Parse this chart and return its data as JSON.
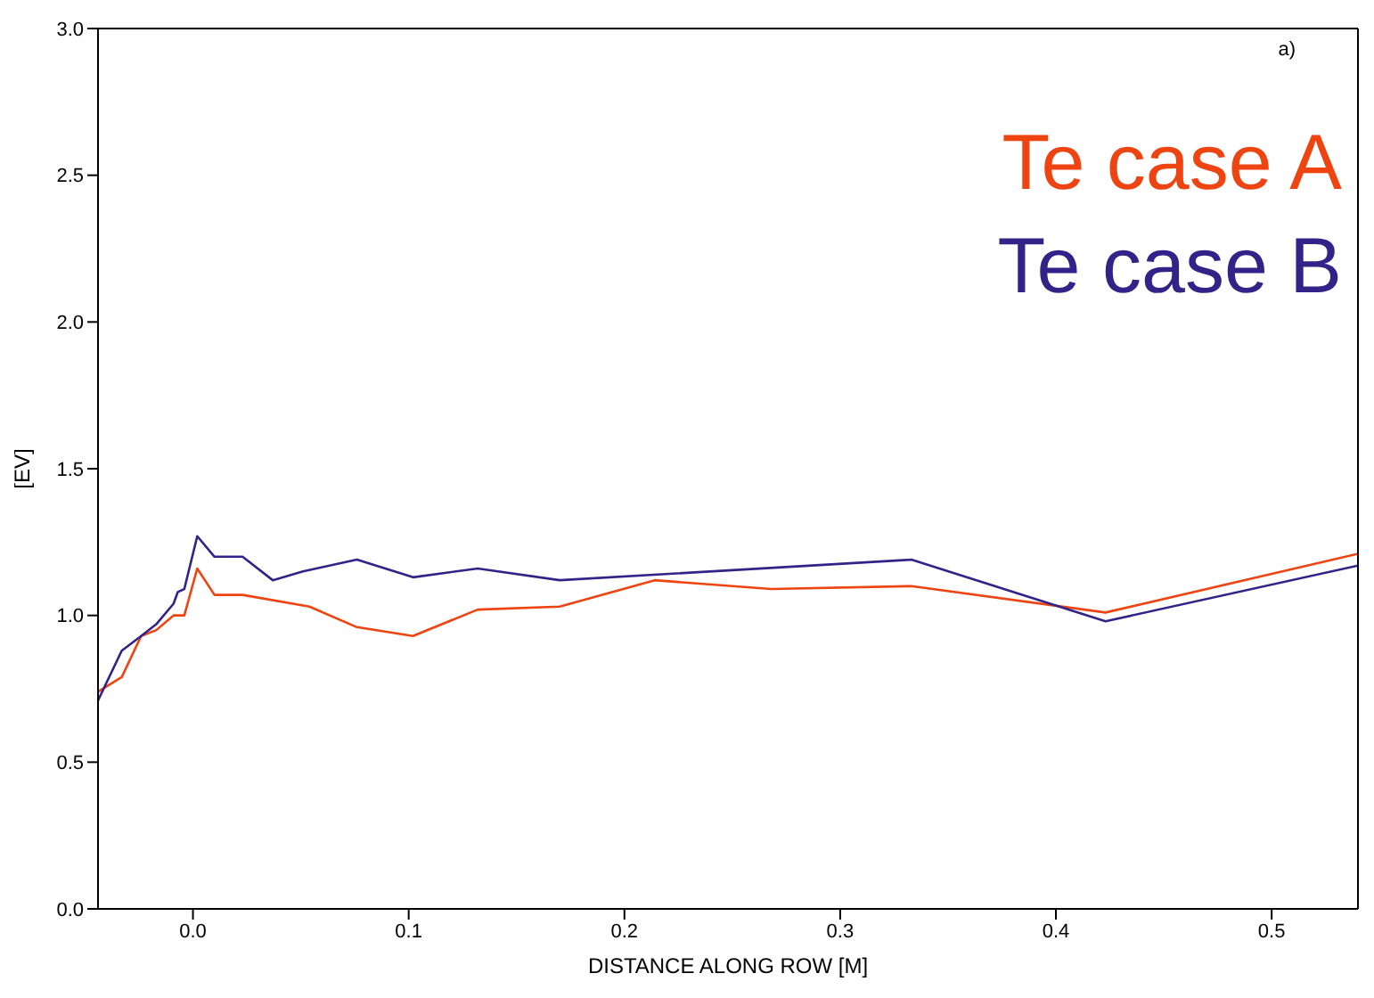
{
  "chart_data": {
    "type": "line",
    "xlabel": "DISTANCE ALONG ROW [M]",
    "ylabel": "[EV]",
    "annotations": [
      "a)"
    ],
    "xlim": [
      -0.044,
      0.54
    ],
    "xticks": [
      {
        "value": 0,
        "label": "0.0"
      },
      0.1,
      0.2,
      0.3,
      0.4,
      0.5
    ],
    "ylim": [
      0,
      3
    ],
    "yticks": [
      {
        "value": 0,
        "label": "0.0"
      },
      0.5,
      {
        "value": 1,
        "label": "1.0"
      },
      1.5,
      {
        "value": 2,
        "label": "2.0"
      },
      2.5,
      {
        "value": 3,
        "label": "3.0"
      }
    ],
    "legend": "top right",
    "marker": "none",
    "line_style": "solid",
    "series": [
      {
        "name": "Te case A",
        "color": "#ee4411",
        "x": [
          -0.044,
          -0.033,
          -0.024,
          -0.017,
          -0.009,
          -0.004,
          0.002,
          0.01,
          0.023,
          0.054,
          0.076,
          0.102,
          0.132,
          0.17,
          0.214,
          0.268,
          0.333,
          0.423,
          0.54
        ],
        "values": [
          0.74,
          0.79,
          0.93,
          0.95,
          1.0,
          1.0,
          1.16,
          1.07,
          1.07,
          1.03,
          0.96,
          0.93,
          1.02,
          1.03,
          1.12,
          1.09,
          1.1,
          1.01,
          1.21
        ]
      },
      {
        "name": "Te case B",
        "color": "#332288",
        "x": [
          -0.044,
          -0.033,
          -0.024,
          -0.017,
          -0.009,
          -0.007,
          -0.004,
          0.002,
          0.01,
          0.023,
          0.037,
          0.051,
          0.076,
          0.102,
          0.132,
          0.17,
          0.333,
          0.423,
          0.54
        ],
        "values": [
          0.71,
          0.88,
          0.93,
          0.97,
          1.04,
          1.08,
          1.09,
          1.27,
          1.2,
          1.2,
          1.12,
          1.15,
          1.19,
          1.13,
          1.16,
          1.12,
          1.19,
          0.98,
          1.17
        ]
      }
    ]
  }
}
